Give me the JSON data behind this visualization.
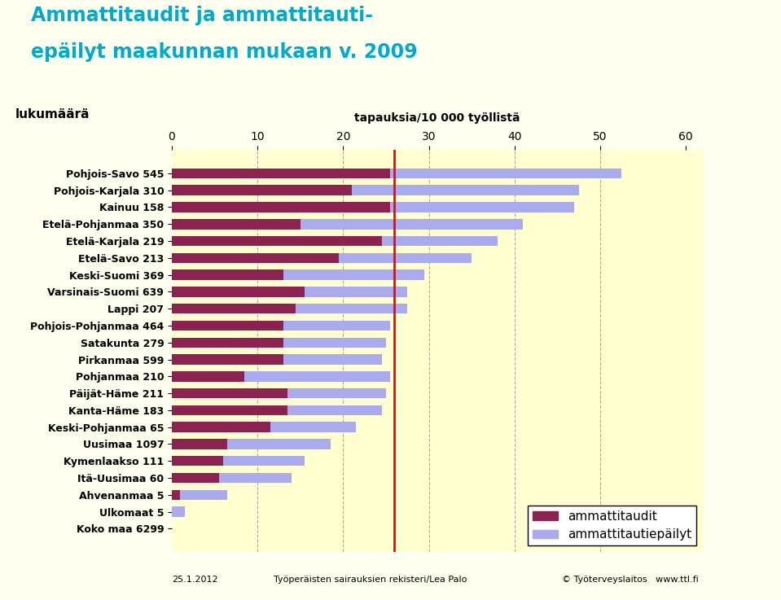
{
  "title_line1": "Ammattitaudit ja ammattitauti-",
  "title_line2": "epäilyt maakunnan mukaan v. 2009",
  "title_color": "#00AACC",
  "xlabel": "tapauksia/10 000 työllistä",
  "ylabel": "lukumäärä",
  "xlim": [
    0,
    62
  ],
  "xticks": [
    0,
    10,
    20,
    30,
    40,
    50,
    60
  ],
  "background_color": "#FFFFF0",
  "plot_bg_color": "#FFFFD0",
  "red_line_x": 26.0,
  "legend_labels": [
    "ammattitaudit",
    "ammattitautiepäilyt"
  ],
  "color_ammattitaudit": "#8B2252",
  "color_epaeilyt": "#AAAAEE",
  "categories": [
    "Pohjois-Savo 545",
    "Pohjois-Karjala 310",
    "Kainuu 158",
    "Etelä-Pohjanmaa 350",
    "Etelä-Karjala 219",
    "Etelä-Savo 213",
    "Keski-Suomi 369",
    "Varsinais-Suomi 639",
    "Lappi 207",
    "Pohjois-Pohjanmaa 464",
    "Satakunta 279",
    "Pirkanmaa 599",
    "Pohjanmaa 210",
    "Päijät-Häme 211",
    "Kanta-Häme 183",
    "Keski-Pohjanmaa 65",
    "Uusimaa 1097",
    "Kymenlaakso 111",
    "Itä-Uusimaa 60",
    "Ahvenanmaa 5",
    "Ulkomaat 5",
    "Koko maa 6299"
  ],
  "ammattitaudit_values": [
    25.5,
    21.0,
    25.5,
    15.0,
    24.5,
    19.5,
    13.0,
    15.5,
    14.5,
    13.0,
    13.0,
    13.0,
    8.5,
    13.5,
    13.5,
    11.5,
    6.5,
    6.0,
    5.5,
    1.0,
    0.0,
    0.0
  ],
  "epaeilyt_values": [
    27.0,
    26.5,
    21.5,
    26.0,
    13.5,
    15.5,
    16.5,
    12.0,
    13.0,
    12.5,
    12.0,
    11.5,
    17.0,
    11.5,
    11.0,
    10.0,
    12.0,
    9.5,
    8.5,
    5.5,
    1.5,
    0.0
  ],
  "grid_color": "#AAAAAA",
  "fontsize_labels": 9,
  "fontsize_title": 17,
  "fontsize_axis": 10
}
